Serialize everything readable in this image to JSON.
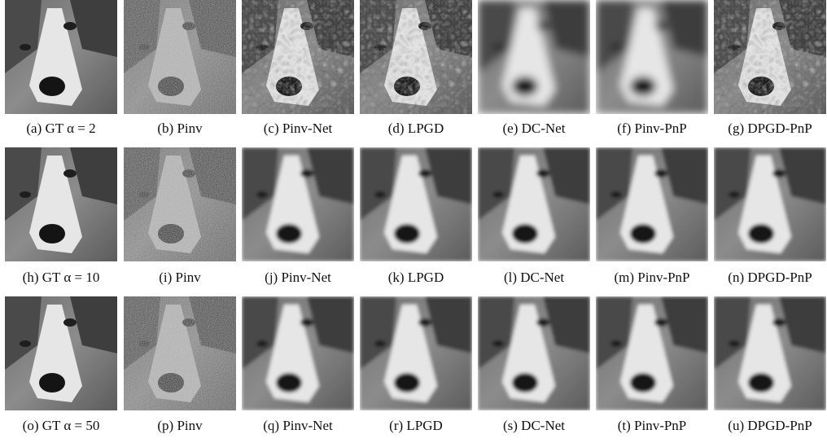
{
  "figure": {
    "rows": [
      {
        "captions": [
          "(a) GT α = 2",
          "(b) Pinv",
          "(c) Pinv-Net",
          "(d) LPGD",
          "(e) DC-Net",
          "(f) Pinv-PnP",
          "(g) DPGD-PnP"
        ]
      },
      {
        "captions": [
          "(h) GT α = 10",
          "(i) Pinv",
          "(j) Pinv-Net",
          "(k) LPGD",
          "(l) DC-Net",
          "(m) Pinv-PnP",
          "(n) DPGD-PnP"
        ]
      },
      {
        "captions": [
          "(o) GT α = 50",
          "(p) Pinv",
          "(q) Pinv-Net",
          "(r) LPGD",
          "(s) DC-Net",
          "(t) Pinv-PnP",
          "(u) DPGD-PnP"
        ]
      }
    ]
  }
}
